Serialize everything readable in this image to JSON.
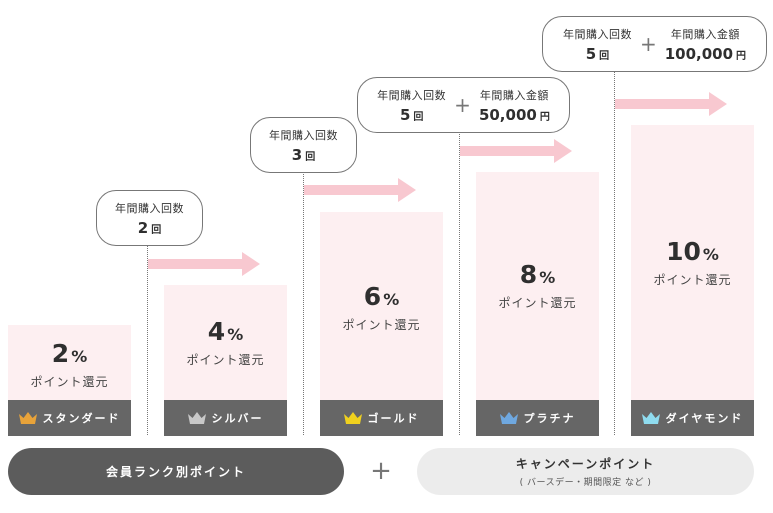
{
  "ranks": [
    {
      "percent": "2",
      "unit": "%",
      "label": "ポイント還元",
      "name": "スタンダード",
      "crown_color": "#e8a33a"
    },
    {
      "percent": "4",
      "unit": "%",
      "label": "ポイント還元",
      "name": "シルバー",
      "crown_color": "#c8c8c8"
    },
    {
      "percent": "6",
      "unit": "%",
      "label": "ポイント還元",
      "name": "ゴールド",
      "crown_color": "#f0d11e"
    },
    {
      "percent": "8",
      "unit": "%",
      "label": "ポイント還元",
      "name": "プラチナ",
      "crown_color": "#6fa8e0"
    },
    {
      "percent": "10",
      "unit": "%",
      "label": "ポイント還元",
      "name": "ダイヤモンド",
      "crown_color": "#8fdcef"
    }
  ],
  "conditions": [
    {
      "count_label": "年間購入回数",
      "count": "2",
      "count_unit": "回"
    },
    {
      "count_label": "年間購入回数",
      "count": "3",
      "count_unit": "回"
    },
    {
      "count_label": "年間購入回数",
      "count": "5",
      "count_unit": "回",
      "plus": "+",
      "amount_label": "年間購入金額",
      "amount": "50,000",
      "amount_unit": "円"
    },
    {
      "count_label": "年間購入回数",
      "count": "5",
      "count_unit": "回",
      "plus": "+",
      "amount_label": "年間購入金額",
      "amount": "100,000",
      "amount_unit": "円"
    }
  ],
  "footer": {
    "left_label": "会員ランク別ポイント",
    "plus": "+",
    "right_label": "キャンペーンポイント",
    "right_sub": "( バースデー・期間限定 など )"
  },
  "colors": {
    "column_bg": "#fdeff1",
    "arrow": "#f8c8d0",
    "rank_bar": "#666666",
    "left_pill": "#5c5c5c",
    "right_pill": "#ececec"
  }
}
